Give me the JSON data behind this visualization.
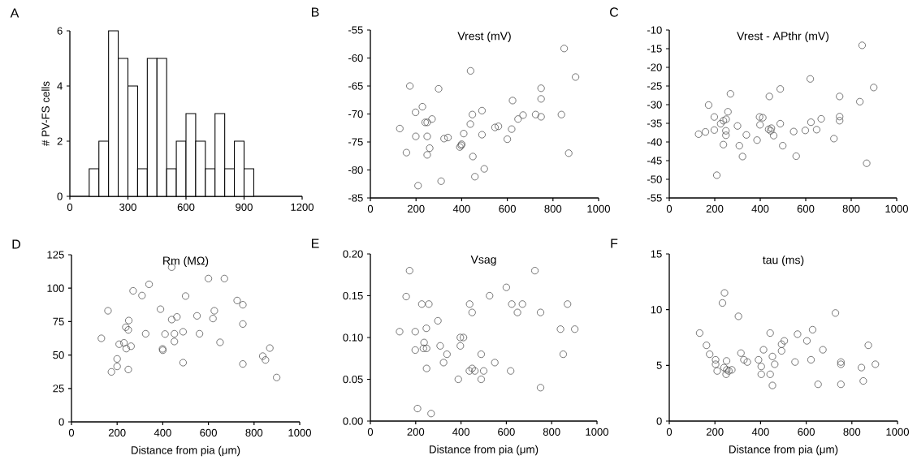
{
  "chart_data": [
    {
      "type": "histogram",
      "ylabel": "# PV-FS cells",
      "annotations": [
        "A"
      ],
      "color": "#ffffff",
      "bins": [
        100,
        150,
        200,
        250,
        300,
        350,
        400,
        450,
        500,
        550,
        600,
        650,
        700,
        750,
        800,
        850,
        900,
        950
      ],
      "values": [
        1,
        2,
        6,
        5,
        4,
        1,
        5,
        5,
        1,
        2,
        3,
        2,
        1,
        3,
        1,
        2,
        1
      ],
      "xlim": [
        0,
        1200
      ],
      "xticks": [
        0,
        300,
        600,
        900,
        1200
      ],
      "ylim": [
        0,
        6
      ],
      "yticks": [
        0,
        2,
        4,
        6
      ]
    },
    {
      "type": "scatter",
      "title": "Vrest (mV)",
      "annotations": [
        "B"
      ],
      "color": "#555555",
      "marker": "circle",
      "x": [
        849,
        439,
        899,
        173,
        299,
        748,
        748,
        623,
        228,
        198,
        489,
        447,
        724,
        669,
        837,
        748,
        270,
        647,
        240,
        249,
        438,
        129,
        546,
        561,
        619,
        409,
        199,
        249,
        489,
        323,
        340,
        600,
        392,
        398,
        400,
        260,
        158,
        249,
        449,
        869,
        499,
        458,
        310,
        209
      ],
      "values": [
        -58.3,
        -62.3,
        -63.4,
        -65.0,
        -65.5,
        -65.4,
        -67.3,
        -67.6,
        -68.7,
        -69.7,
        -69.4,
        -70.1,
        -70.1,
        -70.2,
        -70.1,
        -70.5,
        -70.9,
        -70.9,
        -71.5,
        -71.5,
        -71.8,
        -72.6,
        -72.4,
        -72.2,
        -72.7,
        -73.5,
        -74.0,
        -74.0,
        -73.7,
        -74.4,
        -74.2,
        -74.5,
        -75.9,
        -75.6,
        -75.4,
        -76.1,
        -76.9,
        -77.3,
        -77.6,
        -77.0,
        -79.8,
        -81.2,
        -82.0,
        -82.8
      ],
      "xlim": [
        0,
        1000
      ],
      "xticks": [
        0,
        200,
        400,
        600,
        800,
        1000
      ],
      "ylim": [
        -85,
        -55
      ],
      "yticks": [
        -85,
        -80,
        -75,
        -70,
        -65,
        -60,
        -55
      ]
    },
    {
      "type": "scatter",
      "title": "Vrest - APthr (mV)",
      "annotations": [
        "C"
      ],
      "color": "#555555",
      "marker": "circle",
      "x": [
        848,
        620,
        899,
        488,
        269,
        440,
        749,
        838,
        173,
        258,
        198,
        397,
        411,
        749,
        250,
        238,
        226,
        749,
        668,
        623,
        488,
        300,
        399,
        198,
        449,
        437,
        648,
        598,
        446,
        249,
        547,
        159,
        129,
        249,
        339,
        459,
        386,
        724,
        308,
        238,
        499,
        322,
        558,
        868,
        209
      ],
      "values": [
        -14.1,
        -23.1,
        -25.4,
        -25.8,
        -27.1,
        -27.8,
        -27.8,
        -29.2,
        -30.1,
        -31.9,
        -33.3,
        -33.3,
        -33.5,
        -33.2,
        -33.9,
        -34.3,
        -35.1,
        -34.3,
        -33.8,
        -34.7,
        -35.1,
        -35.7,
        -35.4,
        -36.8,
        -36.3,
        -36.6,
        -36.7,
        -36.9,
        -37.0,
        -37.0,
        -37.2,
        -37.3,
        -37.9,
        -38.2,
        -38.1,
        -38.3,
        -39.5,
        -39.1,
        -41.0,
        -40.7,
        -41.0,
        -43.9,
        -43.8,
        -45.7,
        -48.9
      ],
      "xlim": [
        0,
        1000
      ],
      "xticks": [
        0,
        200,
        400,
        600,
        800,
        1000
      ],
      "ylim": [
        -55,
        -10
      ],
      "yticks": [
        -55,
        -50,
        -45,
        -40,
        -35,
        -30,
        -25,
        -20,
        -15,
        -10
      ]
    },
    {
      "type": "scatter",
      "title": "Rm (MΩ)",
      "xlabel": "Distance from pia (μm)",
      "annotations": [
        "D"
      ],
      "color": "#555555",
      "marker": "circle",
      "x": [
        439,
        600,
        670,
        340,
        270,
        309,
        500,
        726,
        751,
        160,
        626,
        390,
        550,
        462,
        439,
        620,
        251,
        751,
        238,
        249,
        489,
        325,
        410,
        451,
        561,
        131,
        651,
        451,
        230,
        209,
        261,
        240,
        869,
        399,
        400,
        838,
        850,
        200,
        489,
        751,
        200,
        249,
        175,
        899
      ],
      "values": [
        115.7,
        107.2,
        107.2,
        102.9,
        98.0,
        94.5,
        94.1,
        90.8,
        87.6,
        83.1,
        83.1,
        84.3,
        79.3,
        78.5,
        76.5,
        77.3,
        75.8,
        73.2,
        70.8,
        68.8,
        67.4,
        65.9,
        65.7,
        65.9,
        65.9,
        62.5,
        59.5,
        60.1,
        59.1,
        58.1,
        56.6,
        54.8,
        55.2,
        54.6,
        53.6,
        49.2,
        46.3,
        47.1,
        44.3,
        43.3,
        41.5,
        39.2,
        37.4,
        33.2
      ],
      "xlim": [
        0,
        1000
      ],
      "xticks": [
        0,
        200,
        400,
        600,
        800,
        1000
      ],
      "ylim": [
        0,
        125
      ],
      "yticks": [
        0,
        25,
        50,
        75,
        100,
        125
      ]
    },
    {
      "type": "scatter",
      "title": "Vsag",
      "xlabel": "Distance from pia (μm)",
      "annotations": [
        "E"
      ],
      "color": "#555555",
      "marker": "circle",
      "x": [
        173,
        726,
        600,
        158,
        526,
        227,
        258,
        438,
        624,
        671,
        870,
        449,
        649,
        751,
        298,
        129,
        198,
        247,
        839,
        902,
        397,
        411,
        237,
        397,
        308,
        234,
        248,
        198,
        338,
        489,
        851,
        323,
        549,
        248,
        449,
        437,
        461,
        500,
        619,
        388,
        489,
        751,
        208,
        268
      ],
      "values": [
        0.18,
        0.18,
        0.16,
        0.149,
        0.15,
        0.14,
        0.14,
        0.14,
        0.14,
        0.14,
        0.14,
        0.13,
        0.13,
        0.13,
        0.12,
        0.107,
        0.107,
        0.111,
        0.11,
        0.11,
        0.1,
        0.1,
        0.094,
        0.09,
        0.09,
        0.087,
        0.087,
        0.085,
        0.08,
        0.08,
        0.08,
        0.07,
        0.07,
        0.063,
        0.063,
        0.06,
        0.06,
        0.06,
        0.06,
        0.05,
        0.05,
        0.04,
        0.015,
        0.009
      ],
      "xlim": [
        0,
        1000
      ],
      "xticks": [
        0,
        200,
        400,
        600,
        800,
        1000
      ],
      "ylim": [
        0,
        0.2
      ],
      "yticks": [
        {
          "value": 0,
          "label": "0.00"
        },
        {
          "value": 0.05,
          "label": "0.05"
        },
        {
          "value": 0.1,
          "label": "0.10"
        },
        {
          "value": 0.15,
          "label": "0.15"
        },
        {
          "value": 0.2,
          "label": "0.20"
        }
      ]
    },
    {
      "type": "scatter",
      "title": "tau (ms)",
      "xlabel": "Distance from pia (μm)",
      "annotations": [
        "F"
      ],
      "color": "#555555",
      "marker": "circle",
      "x": [
        242,
        233,
        728,
        303,
        628,
        133,
        442,
        562,
        603,
        504,
        492,
        163,
        872,
        413,
        673,
        492,
        314,
        177,
        452,
        203,
        251,
        621,
        327,
        391,
        342,
        551,
        752,
        203,
        462,
        752,
        903,
        403,
        240,
        842,
        210,
        274,
        252,
        261,
        403,
        442,
        249,
        850,
        652,
        752,
        452
      ],
      "values": [
        11.5,
        10.6,
        9.7,
        9.4,
        8.2,
        7.9,
        7.9,
        7.8,
        7.2,
        7.2,
        6.9,
        6.8,
        6.8,
        6.4,
        6.4,
        6.3,
        6.1,
        6.0,
        5.8,
        5.5,
        5.4,
        5.5,
        5.5,
        5.5,
        5.3,
        5.3,
        5.3,
        5.1,
        5.1,
        5.1,
        5.1,
        4.9,
        4.8,
        4.8,
        4.5,
        4.6,
        4.6,
        4.5,
        4.2,
        4.2,
        4.2,
        3.6,
        3.3,
        3.3,
        3.2
      ],
      "xlim": [
        0,
        1000
      ],
      "xticks": [
        0,
        200,
        400,
        600,
        800,
        1000
      ],
      "ylim": [
        0,
        15
      ],
      "yticks": [
        0,
        5,
        10,
        15
      ]
    }
  ]
}
